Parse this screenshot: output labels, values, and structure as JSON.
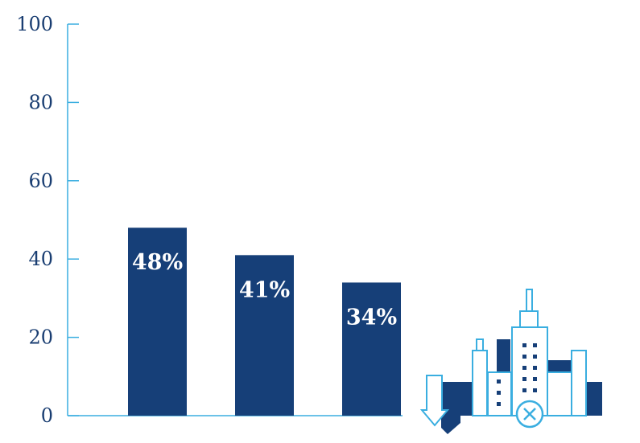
{
  "chart_data": {
    "type": "bar",
    "categories": [
      "",
      "",
      ""
    ],
    "values": [
      48,
      41,
      34
    ],
    "data_labels": [
      "48%",
      "41%",
      "34%"
    ],
    "title": "",
    "xlabel": "",
    "ylabel": "",
    "ylim": [
      0,
      100
    ],
    "yticks": [
      0,
      20,
      40,
      60,
      80,
      100
    ],
    "grid": false,
    "colors": {
      "bar": "#163f78",
      "axis": "#3aaee0",
      "text": "#1a3e72",
      "label": "#ffffff"
    },
    "decoration_icon": "city-skyline-icon"
  }
}
